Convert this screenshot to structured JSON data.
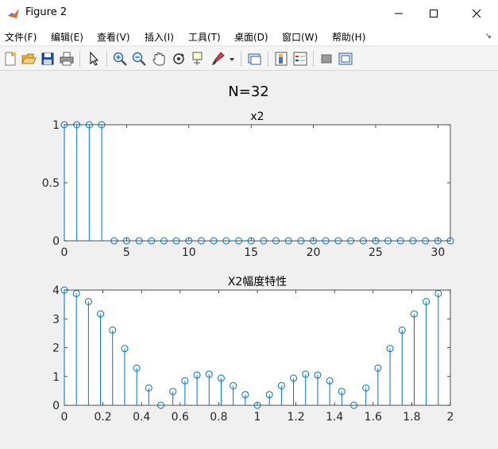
{
  "window": {
    "title": "Figure 2",
    "controls": {
      "minimize": "—",
      "maximize": "☐",
      "close": "✕"
    }
  },
  "menu": {
    "items": [
      "文件(F)",
      "编辑(E)",
      "查看(V)",
      "插入(I)",
      "工具(T)",
      "桌面(D)",
      "窗口(W)",
      "帮助(H)"
    ],
    "overflow_icon": "arrow-icon"
  },
  "toolbar": {
    "icons": [
      "new-figure-icon",
      "open-file-icon",
      "save-icon",
      "print-icon",
      "edit-plot-icon",
      "zoom-in-icon",
      "zoom-out-icon",
      "pan-icon",
      "rotate-3d-icon",
      "data-cursor-icon",
      "brush-icon",
      "dropdown-arrow-icon",
      "link-plot-icon",
      "colorbar-icon",
      "legend-icon",
      "hide-plot-tools-icon",
      "show-plot-tools-icon"
    ]
  },
  "figure": {
    "suptitle": "N=32"
  },
  "chart_data": [
    {
      "type": "stem",
      "title": "x2",
      "xlabel": "",
      "ylabel": "",
      "xlim": [
        0,
        31
      ],
      "ylim": [
        0,
        1
      ],
      "xticks": [
        "0",
        "5",
        "10",
        "15",
        "20",
        "25",
        "30"
      ],
      "yticks": [
        "0",
        "0.5",
        "1"
      ],
      "x": [
        0,
        1,
        2,
        3,
        4,
        5,
        6,
        7,
        8,
        9,
        10,
        11,
        12,
        13,
        14,
        15,
        16,
        17,
        18,
        19,
        20,
        21,
        22,
        23,
        24,
        25,
        26,
        27,
        28,
        29,
        30,
        31
      ],
      "y": [
        1,
        1,
        1,
        1,
        0,
        0,
        0,
        0,
        0,
        0,
        0,
        0,
        0,
        0,
        0,
        0,
        0,
        0,
        0,
        0,
        0,
        0,
        0,
        0,
        0,
        0,
        0,
        0,
        0,
        0,
        0,
        0
      ],
      "color": "#0072bd"
    },
    {
      "type": "stem",
      "title": "X2幅度特性",
      "xlabel": "",
      "ylabel": "",
      "xlim": [
        0,
        2
      ],
      "ylim": [
        0,
        4
      ],
      "xticks": [
        "0",
        "0.2",
        "0.4",
        "0.6",
        "0.8",
        "1",
        "1.2",
        "1.4",
        "1.6",
        "1.8",
        "2"
      ],
      "yticks": [
        "0",
        "1",
        "2",
        "3",
        "4"
      ],
      "x": [
        0,
        0.0625,
        0.125,
        0.1875,
        0.25,
        0.3125,
        0.375,
        0.4375,
        0.5,
        0.5625,
        0.625,
        0.6875,
        0.75,
        0.8125,
        0.875,
        0.9375,
        1,
        1.0625,
        1.125,
        1.1875,
        1.25,
        1.3125,
        1.375,
        1.4375,
        1.5,
        1.5625,
        1.625,
        1.6875,
        1.75,
        1.8125,
        1.875,
        1.9375
      ],
      "y": [
        4,
        3.88,
        3.6,
        3.17,
        2.61,
        1.97,
        1.29,
        0.6,
        0,
        0.48,
        0.85,
        1.05,
        1.08,
        0.94,
        0.68,
        0.37,
        0,
        0.37,
        0.68,
        0.94,
        1.08,
        1.05,
        0.85,
        0.48,
        0,
        0.6,
        1.29,
        1.97,
        2.61,
        3.17,
        3.6,
        3.88
      ],
      "color": "#0072bd"
    }
  ]
}
